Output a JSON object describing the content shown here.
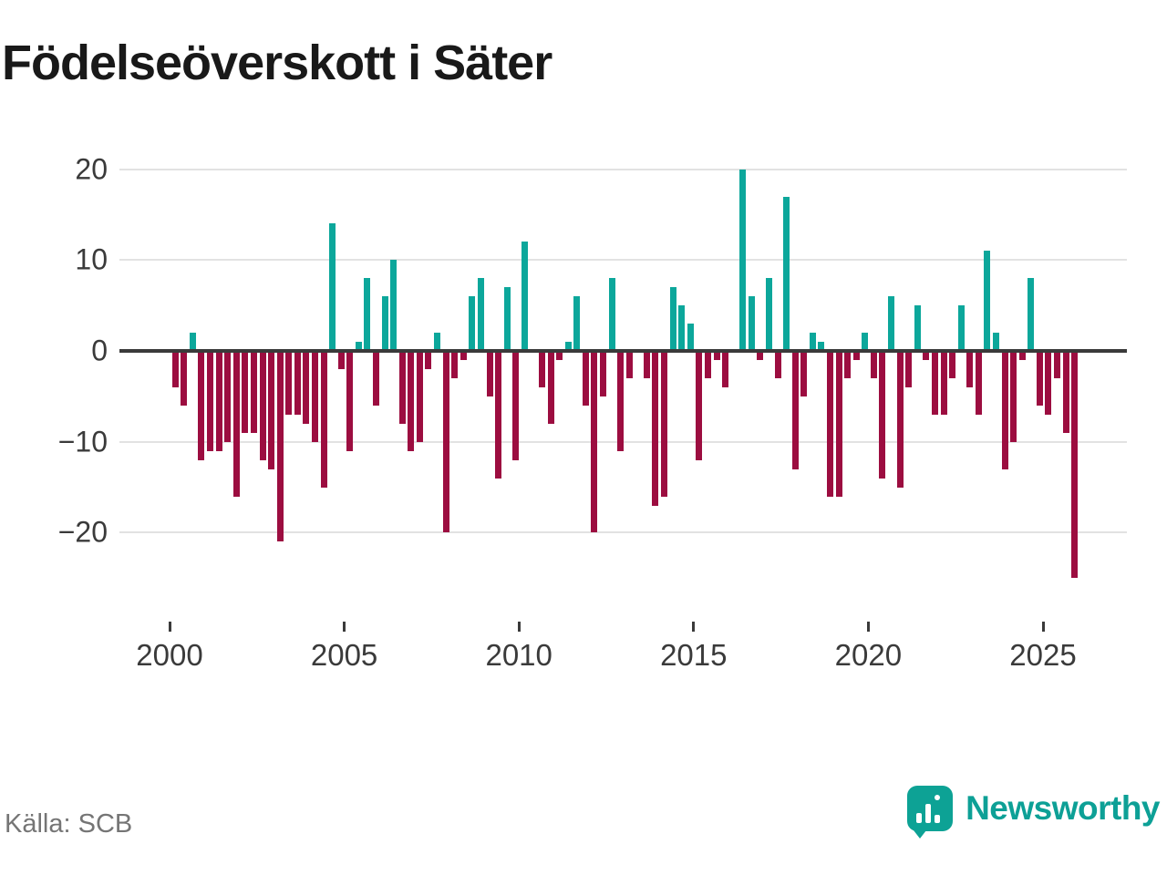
{
  "title": "Födelseöverskott i Säter",
  "source": "Källa: SCB",
  "brand": {
    "name": "Newsworthy",
    "color": "#0da096"
  },
  "colors": {
    "positive": "#0ca79b",
    "negative": "#9c0d40",
    "axis_line": "#3a3a3a",
    "gridline": "#e2e2e2",
    "tick_text": "#3a3a3a",
    "source_text": "#757575"
  },
  "chart_data": {
    "type": "bar",
    "title": "Födelseöverskott i Säter",
    "period": "quarterly",
    "start": "2000 Q1",
    "end": "2025 Q4",
    "unit": "persons (births minus deaths)",
    "grid": true,
    "ylim": [
      -27,
      22
    ],
    "yticks": [
      20,
      10,
      0,
      -10,
      -20
    ],
    "ytick_labels": [
      "20",
      "10",
      "0",
      "−10",
      "−20"
    ],
    "xtick_labels": [
      "2000",
      "2005",
      "2010",
      "2015",
      "2020",
      "2025"
    ],
    "series": [
      {
        "year": "2000",
        "values": [
          -4,
          -6,
          2,
          -12
        ]
      },
      {
        "year": "2001",
        "values": [
          -11,
          -11,
          -10,
          -16
        ]
      },
      {
        "year": "2002",
        "values": [
          -9,
          -9,
          -12,
          -13
        ]
      },
      {
        "year": "2003",
        "values": [
          -21,
          -7,
          -7,
          -8
        ]
      },
      {
        "year": "2004",
        "values": [
          -10,
          -15,
          14,
          -2
        ]
      },
      {
        "year": "2005",
        "values": [
          -11,
          1,
          8,
          -6
        ]
      },
      {
        "year": "2006",
        "values": [
          6,
          10,
          -8,
          -11
        ]
      },
      {
        "year": "2007",
        "values": [
          -10,
          -2,
          2,
          -20
        ]
      },
      {
        "year": "2008",
        "values": [
          -3,
          -1,
          6,
          8
        ]
      },
      {
        "year": "2009",
        "values": [
          -5,
          -14,
          7,
          -12
        ]
      },
      {
        "year": "2010",
        "values": [
          12,
          0,
          -4,
          -8
        ]
      },
      {
        "year": "2011",
        "values": [
          -1,
          1,
          6,
          -6
        ]
      },
      {
        "year": "2012",
        "values": [
          -20,
          -5,
          8,
          -11
        ]
      },
      {
        "year": "2013",
        "values": [
          -3,
          0,
          -3,
          -17
        ]
      },
      {
        "year": "2014",
        "values": [
          -16,
          7,
          5,
          3
        ]
      },
      {
        "year": "2015",
        "values": [
          -12,
          -3,
          -1,
          -4
        ]
      },
      {
        "year": "2016",
        "values": [
          0,
          20,
          6,
          -1
        ]
      },
      {
        "year": "2017",
        "values": [
          8,
          -3,
          17,
          -13
        ]
      },
      {
        "year": "2018",
        "values": [
          -5,
          2,
          1,
          -16
        ]
      },
      {
        "year": "2019",
        "values": [
          -16,
          -3,
          -1,
          2
        ]
      },
      {
        "year": "2020",
        "values": [
          -3,
          -14,
          6,
          -15
        ]
      },
      {
        "year": "2021",
        "values": [
          -4,
          5,
          -1,
          -7
        ]
      },
      {
        "year": "2022",
        "values": [
          -7,
          -3,
          5,
          -4
        ]
      },
      {
        "year": "2023",
        "values": [
          -7,
          11,
          2,
          -13
        ]
      },
      {
        "year": "2024",
        "values": [
          -10,
          -1,
          8,
          -6
        ]
      },
      {
        "year": "2025",
        "values": [
          -7,
          -3,
          -9,
          -25
        ]
      }
    ]
  }
}
